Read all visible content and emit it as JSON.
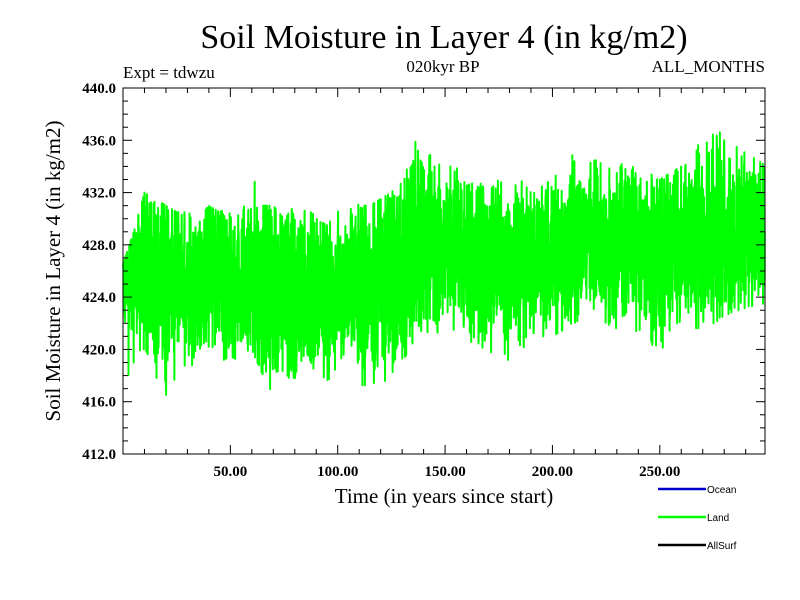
{
  "chart_data": {
    "type": "line",
    "title": "Soil Moisture in Layer 4 (in kg/m2)",
    "subtitle": "020kyr BP",
    "left_note": "Expt = tdwzu",
    "right_note": "ALL_MONTHS",
    "xlabel": "Time (in years since start)",
    "ylabel": "Soil Moisture in Layer 4 (in kg/m2)",
    "xlim": [
      0,
      299
    ],
    "ylim": [
      412.0,
      440.0
    ],
    "x_ticks": [
      {
        "value": 50,
        "label": "50.00"
      },
      {
        "value": 100,
        "label": "100.00"
      },
      {
        "value": 150,
        "label": "150.00"
      },
      {
        "value": 200,
        "label": "200.00"
      },
      {
        "value": 250,
        "label": "250.00"
      }
    ],
    "y_ticks": [
      {
        "value": 412,
        "label": "412.0"
      },
      {
        "value": 416,
        "label": "416.0"
      },
      {
        "value": 420,
        "label": "420.0"
      },
      {
        "value": 424,
        "label": "424.0"
      },
      {
        "value": 428,
        "label": "428.0"
      },
      {
        "value": 432,
        "label": "432.0"
      },
      {
        "value": 436,
        "label": "436.0"
      },
      {
        "value": 440,
        "label": "440.0"
      }
    ],
    "grid": false,
    "legend_position": "bottom-right",
    "legend": [
      {
        "name": "Ocean",
        "color": "#0000cc"
      },
      {
        "name": "Land",
        "color": "#00ff00"
      },
      {
        "name": "AllSurf",
        "color": "#000000"
      }
    ],
    "series": [
      {
        "name": "Land",
        "color": "#00ff00",
        "x": [
          0,
          5,
          10,
          15,
          20,
          25,
          30,
          35,
          40,
          45,
          50,
          55,
          60,
          65,
          70,
          75,
          80,
          85,
          90,
          95,
          100,
          105,
          110,
          115,
          120,
          125,
          130,
          135,
          140,
          145,
          150,
          155,
          160,
          165,
          170,
          175,
          180,
          185,
          190,
          195,
          200,
          205,
          210,
          215,
          220,
          225,
          230,
          235,
          240,
          245,
          250,
          255,
          260,
          265,
          270,
          275,
          280,
          285,
          290,
          295,
          299
        ],
        "mean": [
          425.0,
          425.5,
          425.8,
          425.5,
          425.0,
          425.6,
          425.8,
          425.2,
          425.5,
          425.3,
          425.0,
          424.8,
          425.4,
          424.8,
          424.5,
          425.0,
          424.2,
          425.0,
          424.6,
          424.0,
          424.5,
          425.0,
          424.6,
          424.3,
          425.5,
          425.2,
          425.5,
          427.5,
          427.8,
          427.6,
          428.0,
          427.6,
          427.2,
          427.0,
          426.8,
          427.2,
          426.5,
          426.8,
          426.6,
          427.0,
          427.3,
          427.0,
          428.0,
          428.5,
          428.6,
          428.3,
          428.0,
          428.5,
          427.8,
          427.5,
          427.2,
          427.6,
          428.0,
          428.5,
          429.0,
          429.2,
          429.0,
          429.0,
          429.3,
          429.5,
          429.2
        ],
        "min_envelope": [
          417.0,
          419.0,
          418.5,
          418.0,
          416.5,
          418.0,
          419.0,
          418.5,
          419.5,
          419.0,
          419.5,
          419.0,
          420.0,
          418.0,
          416.5,
          418.0,
          417.0,
          420.0,
          418.0,
          417.0,
          418.5,
          420.0,
          417.0,
          417.5,
          416.5,
          418.0,
          419.0,
          420.5,
          421.5,
          421.0,
          422.0,
          421.0,
          420.5,
          420.0,
          419.5,
          420.5,
          419.0,
          420.0,
          420.5,
          421.0,
          421.0,
          421.5,
          422.0,
          422.5,
          423.0,
          422.0,
          421.5,
          423.0,
          421.0,
          420.5,
          420.0,
          420.5,
          421.0,
          422.0,
          421.0,
          422.0,
          422.5,
          423.0,
          423.0,
          423.5,
          423.5
        ],
        "max_envelope": [
          426.5,
          429.0,
          432.0,
          431.5,
          431.0,
          430.5,
          430.5,
          430.0,
          431.0,
          430.5,
          431.0,
          430.0,
          433.5,
          431.0,
          431.0,
          430.0,
          431.0,
          431.5,
          430.0,
          429.5,
          430.5,
          432.0,
          431.0,
          431.0,
          431.5,
          432.0,
          433.0,
          436.0,
          435.5,
          434.5,
          434.0,
          434.0,
          432.5,
          433.0,
          432.0,
          433.0,
          432.0,
          433.0,
          432.0,
          432.5,
          433.0,
          434.0,
          435.0,
          434.0,
          434.5,
          434.0,
          433.5,
          435.0,
          433.0,
          433.5,
          433.0,
          433.5,
          434.0,
          434.5,
          436.5,
          437.5,
          436.0,
          435.5,
          436.5,
          435.0,
          434.5
        ]
      }
    ]
  }
}
